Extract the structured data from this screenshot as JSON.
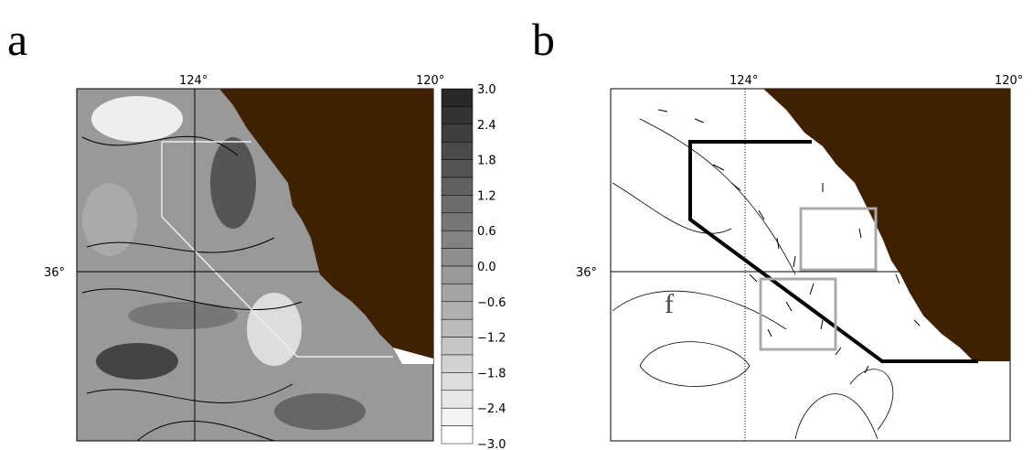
{
  "panels": [
    {
      "label": "a",
      "lon_labels": [
        "124°",
        "120°"
      ],
      "lat_label": "36°",
      "colorbar_labels": [
        "3.0",
        "2.4",
        "1.8",
        "1.2",
        "0.6",
        "0.0",
        "−0.6",
        "−1.2",
        "−1.8",
        "−2.4",
        "−3.0"
      ]
    },
    {
      "label": "b",
      "lon_labels": [
        "124°",
        "120°"
      ],
      "lat_label": "36°",
      "annotation": "f"
    }
  ]
}
